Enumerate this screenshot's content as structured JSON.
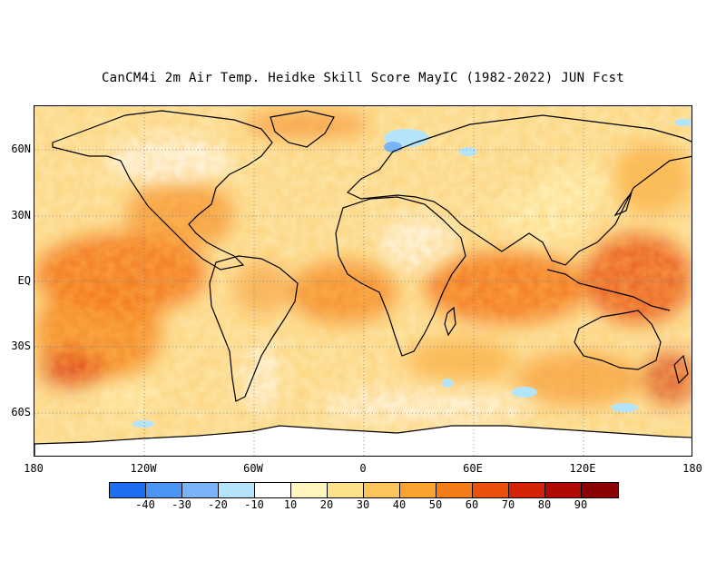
{
  "title": "CanCM4i 2m Air Temp. Heidke Skill Score MayIC (1982-2022) JUN Fcst",
  "axes": {
    "x_ticks": [
      "180",
      "120W",
      "60W",
      "0",
      "60E",
      "120E",
      "180"
    ],
    "y_ticks": [
      "60N",
      "30N",
      "EQ",
      "30S",
      "60S"
    ]
  },
  "colorbar": {
    "labels": [
      "-40",
      "-30",
      "-20",
      "-10",
      "10",
      "20",
      "30",
      "40",
      "50",
      "60",
      "70",
      "80",
      "90"
    ],
    "colors": [
      "#1e6ff0",
      "#4a94f4",
      "#78b4f7",
      "#b4e4fb",
      "#ffffff",
      "#fff6bf",
      "#fde28a",
      "#fcc45a",
      "#faa12e",
      "#f47b16",
      "#e9500a",
      "#d42405",
      "#b00a04",
      "#8c0202"
    ]
  },
  "chart_data": {
    "type": "heatmap",
    "title": "CanCM4i 2m Air Temp. Heidke Skill Score MayIC (1982-2022) JUN Fcst",
    "xlabel": "",
    "ylabel": "",
    "x_range": [
      -180,
      180
    ],
    "y_range": [
      -90,
      90
    ],
    "color_levels": [
      -40,
      -30,
      -20,
      -10,
      10,
      20,
      30,
      40,
      50,
      60,
      70,
      80,
      90
    ]
  }
}
